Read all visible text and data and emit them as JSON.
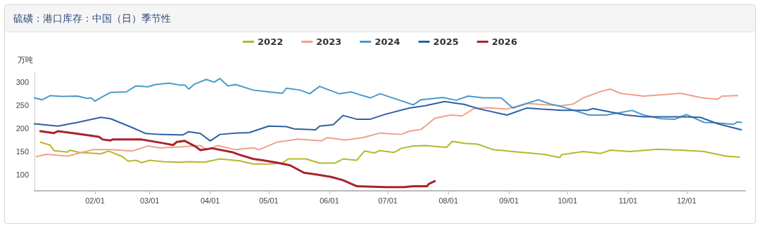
{
  "chart_data": {
    "type": "line",
    "title": "硫磺：港口库存：中国（日）季节性",
    "ylabel": "万吨",
    "xlim": [
      "--01-01",
      "--12-31"
    ],
    "xticks": [
      {
        "value": "--02-01",
        "label": "02/01"
      },
      {
        "value": "--03-01",
        "label": "03/01"
      },
      {
        "value": "--04-01",
        "label": "04/01"
      },
      {
        "value": "--05-01",
        "label": "05/01"
      },
      {
        "value": "--06-01",
        "label": "06/01"
      },
      {
        "value": "--07-01",
        "label": "07/01"
      },
      {
        "value": "--08-01",
        "label": "08/01"
      },
      {
        "value": "--09-01",
        "label": "09/01"
      },
      {
        "value": "--10-01",
        "label": "10/01"
      },
      {
        "value": "--11-01",
        "label": "11/01"
      },
      {
        "value": "--12-01",
        "label": "12/01"
      }
    ],
    "ylim": [
      65,
      320
    ],
    "yticks": [
      100,
      150,
      200,
      250,
      300
    ],
    "grid": false,
    "legend": "top",
    "marker": "none",
    "line_style": "solid",
    "series": [
      {
        "name": "2022",
        "color": "#b5b82a",
        "x": [
          "--01-04",
          "--01-09",
          "--01-11",
          "--01-18",
          "--01-19",
          "--01-24",
          "--02-04",
          "--02-08",
          "--02-15",
          "--02-18",
          "--02-22",
          "--02-25",
          "--03-01",
          "--03-08",
          "--03-16",
          "--03-21",
          "--03-29",
          "--04-06",
          "--04-16",
          "--04-23",
          "--05-01",
          "--05-08",
          "--05-11",
          "--05-20",
          "--05-27",
          "--06-04",
          "--06-08",
          "--06-15",
          "--06-19",
          "--06-24",
          "--06-27",
          "--07-04",
          "--07-08",
          "--07-14",
          "--07-20",
          "--07-31",
          "--08-03",
          "--08-09",
          "--08-16",
          "--08-24",
          "--09-03",
          "--09-19",
          "--09-27",
          "--09-28",
          "--10-09",
          "--10-18",
          "--10-23",
          "--11-02",
          "--11-16",
          "--11-28",
          "--12-10",
          "--12-21",
          "--12-28"
        ],
        "values": [
          170,
          164,
          152,
          149,
          153,
          148,
          145,
          151,
          139,
          129,
          131,
          126,
          131,
          128,
          127,
          128,
          127,
          134,
          130,
          123,
          123,
          125,
          134,
          134,
          125,
          125,
          134,
          131,
          151,
          147,
          152,
          148,
          157,
          162,
          163,
          159,
          172,
          168,
          166,
          154,
          150,
          144,
          137,
          143,
          150,
          146,
          153,
          150,
          155,
          153,
          150,
          140,
          138
        ]
      },
      {
        "name": "2023",
        "color": "#f0a088",
        "x": [
          "--01-02",
          "--01-07",
          "--01-18",
          "--01-26",
          "--01-31",
          "--02-09",
          "--02-20",
          "--02-28",
          "--03-06",
          "--03-16",
          "--03-27",
          "--03-30",
          "--04-05",
          "--04-14",
          "--04-23",
          "--04-26",
          "--05-05",
          "--05-16",
          "--05-28",
          "--05-31",
          "--06-09",
          "--06-18",
          "--06-27",
          "--07-08",
          "--07-12",
          "--07-18",
          "--07-21",
          "--07-25",
          "--08-02",
          "--08-08",
          "--08-14",
          "--08-21",
          "--08-31",
          "--09-10",
          "--09-28",
          "--10-04",
          "--10-09",
          "--10-18",
          "--10-23",
          "--10-28",
          "--11-09",
          "--11-28",
          "--12-09",
          "--12-17",
          "--12-19",
          "--12-27"
        ],
        "values": [
          139,
          144,
          140,
          149,
          154,
          154,
          151,
          162,
          158,
          160,
          163,
          154,
          163,
          154,
          158,
          154,
          170,
          177,
          173,
          180,
          175,
          180,
          190,
          187,
          194,
          198,
          208,
          222,
          229,
          227,
          243,
          245,
          242,
          254,
          249,
          253,
          266,
          280,
          285,
          276,
          270,
          276,
          266,
          263,
          270,
          271
        ]
      },
      {
        "name": "2024",
        "color": "#4a9ac6",
        "x": [
          "--01-01",
          "--01-05",
          "--01-09",
          "--01-15",
          "--01-23",
          "--01-28",
          "--01-30",
          "--02-01",
          "--02-05",
          "--02-09",
          "--02-17",
          "--02-22",
          "--02-28",
          "--03-04",
          "--03-11",
          "--03-16",
          "--03-19",
          "--03-21",
          "--03-24",
          "--03-30",
          "--04-03",
          "--04-06",
          "--04-10",
          "--04-14",
          "--04-23",
          "--05-01",
          "--05-08",
          "--05-10",
          "--05-17",
          "--05-22",
          "--05-27",
          "--06-06",
          "--06-12",
          "--06-22",
          "--06-27",
          "--07-07",
          "--07-14",
          "--07-18",
          "--07-29",
          "--08-05",
          "--08-11",
          "--08-19",
          "--08-28",
          "--09-03",
          "--09-16",
          "--09-22",
          "--09-28",
          "--10-06",
          "--10-12",
          "--10-21",
          "--11-03",
          "--11-09",
          "--11-18",
          "--11-25",
          "--12-01",
          "--12-10",
          "--12-17",
          "--12-25",
          "--12-27",
          "--12-29"
        ],
        "values": [
          266,
          262,
          271,
          269,
          270,
          265,
          266,
          259,
          269,
          278,
          279,
          292,
          290,
          295,
          298,
          294,
          294,
          285,
          296,
          306,
          300,
          308,
          292,
          295,
          283,
          279,
          276,
          287,
          283,
          275,
          291,
          275,
          279,
          266,
          275,
          261,
          251,
          262,
          267,
          261,
          270,
          266,
          266,
          244,
          262,
          253,
          247,
          237,
          229,
          229,
          239,
          229,
          221,
          220,
          230,
          213,
          212,
          209,
          214,
          213
        ]
      },
      {
        "name": "2025",
        "color": "#2f5fa6",
        "x": [
          "--01-01",
          "--01-13",
          "--01-23",
          "--02-04",
          "--02-09",
          "--02-20",
          "--02-27",
          "--03-06",
          "--03-18",
          "--03-21",
          "--03-27",
          "--04-01",
          "--04-06",
          "--04-14",
          "--04-21",
          "--05-01",
          "--05-10",
          "--05-14",
          "--05-25",
          "--05-27",
          "--06-03",
          "--06-08",
          "--06-15",
          "--06-22",
          "--06-30",
          "--07-12",
          "--07-20",
          "--07-30",
          "--08-09",
          "--08-17",
          "--08-31",
          "--09-10",
          "--09-28",
          "--10-11",
          "--10-14",
          "--10-31",
          "--11-09",
          "--11-29",
          "--12-08",
          "--12-17",
          "--12-29"
        ],
        "values": [
          210,
          205,
          213,
          224,
          221,
          202,
          189,
          187,
          186,
          193,
          189,
          173,
          187,
          190,
          191,
          205,
          204,
          199,
          197,
          205,
          208,
          228,
          220,
          220,
          231,
          244,
          249,
          258,
          252,
          242,
          229,
          244,
          239,
          239,
          243,
          229,
          225,
          225,
          224,
          210,
          197
        ]
      },
      {
        "name": "2026",
        "color": "#a8232a",
        "x": [
          "--01-04",
          "--01-11",
          "--01-13",
          "--01-22",
          "--02-03",
          "--02-05",
          "--02-09",
          "--02-10",
          "--02-25",
          "--03-08",
          "--03-13",
          "--03-15",
          "--03-19",
          "--03-24",
          "--03-27",
          "--04-02",
          "--04-12",
          "--04-16",
          "--04-23",
          "--04-28",
          "--05-05",
          "--05-12",
          "--05-19",
          "--05-26",
          "--06-02",
          "--06-08",
          "--06-15",
          "--06-30",
          "--07-09",
          "--07-14",
          "--07-21",
          "--07-22",
          "--07-25"
        ],
        "values": [
          194,
          190,
          194,
          189,
          182,
          176,
          174,
          176,
          176,
          168,
          164,
          171,
          173,
          162,
          153,
          157,
          149,
          143,
          134,
          131,
          126,
          120,
          104,
          100,
          95,
          88,
          75,
          73,
          73,
          75,
          75,
          80,
          86
        ]
      }
    ]
  }
}
